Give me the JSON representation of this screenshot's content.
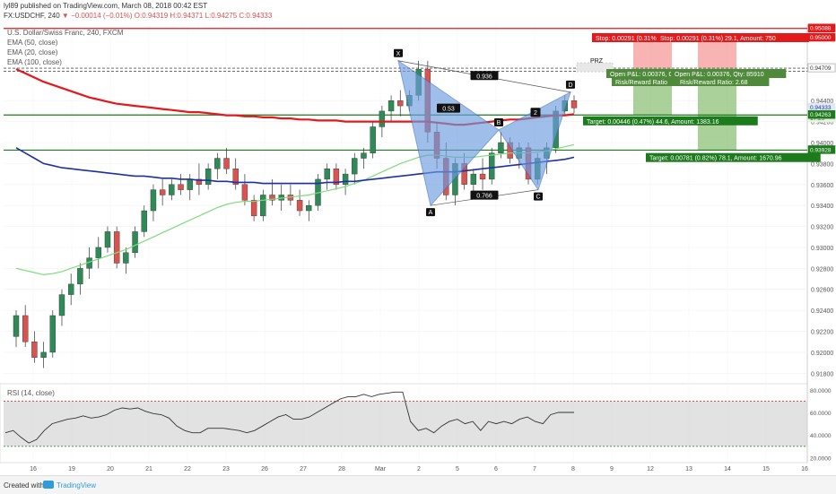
{
  "header": {
    "publisher": "lyl89 published on TradingView.com, March 08, 2018 00:42 EST",
    "symbol": "FX:USDCHF, 240",
    "change": "▼ −0.00014 (−0.01%)",
    "o": "O:0.94319",
    "h": "H:0.94371",
    "l": "L:0.94275",
    "c": "C:0.94333",
    "last": "0.94333"
  },
  "legend": {
    "name": "U.S. Dollar/Swiss Franc, 240, FXCM",
    "ema50": "EMA (50, close)",
    "ema20": "EMA (20, close)",
    "ema100": "EMA (100, close)"
  },
  "footer": {
    "created": "Created with",
    "brand": "TradingView"
  },
  "colors": {
    "up": "#2e8b57",
    "down": "#d9534f",
    "ema100": "#e31a1c",
    "ema50": "#1f2fa8",
    "ema20": "#7ddc7d",
    "level": "#1d7a1d",
    "pattern": "#6c9de0",
    "stop": "#f7a6a6",
    "target": "#9cc98a"
  },
  "chart_data": {
    "type": "candlestick",
    "y_axis_ticks": [
      "0.94400",
      "0.94200",
      "0.94000",
      "0.93800",
      "0.93600",
      "0.93400",
      "0.93200",
      "0.93000",
      "0.92800",
      "0.92600",
      "0.92400",
      "0.92200",
      "0.92000",
      "0.91800"
    ],
    "ylim": [
      0.917,
      0.9512
    ],
    "x_axis_ticks": [
      "16",
      "19",
      "20",
      "21",
      "22",
      "23",
      "26",
      "27",
      "28",
      "Mar",
      "2",
      "5",
      "6",
      "7",
      "8",
      "9",
      "12",
      "13",
      "14",
      "15",
      "16"
    ],
    "price_labels": [
      {
        "text": "0.95088",
        "value": 0.95088,
        "bg": "#e31a1c",
        "fg": "#ffffff"
      },
      {
        "text": "0.95000",
        "value": 0.95,
        "bg": "#e31a1c",
        "fg": "#ffffff"
      },
      {
        "text": "0.94709",
        "value": 0.94709,
        "bg": "#ffffff",
        "fg": "#333333"
      },
      {
        "text": "0.94709",
        "value": 0.94709,
        "bg": "#ffffff",
        "fg": "#333333"
      },
      {
        "text": "0.94333",
        "value": 0.94333,
        "bg": "#dfe9f7",
        "fg": "#1f2fa8"
      },
      {
        "text": "17:29",
        "value": 0.9423,
        "bg": "#e8f2e0",
        "fg": "#1d7a1d"
      },
      {
        "text": "0.94263",
        "value": 0.94263,
        "bg": "#1d7a1d",
        "fg": "#ffffff"
      },
      {
        "text": "0.93928",
        "value": 0.93928,
        "bg": "#1d7a1d",
        "fg": "#ffffff"
      }
    ],
    "candles": [
      [
        0.9215,
        0.924,
        0.9205,
        0.9235
      ],
      [
        0.9235,
        0.9245,
        0.9205,
        0.921
      ],
      [
        0.921,
        0.922,
        0.919,
        0.9195
      ],
      [
        0.9195,
        0.921,
        0.9185,
        0.92
      ],
      [
        0.92,
        0.924,
        0.9195,
        0.9235
      ],
      [
        0.9235,
        0.926,
        0.9225,
        0.9255
      ],
      [
        0.9255,
        0.9275,
        0.9245,
        0.9265
      ],
      [
        0.9265,
        0.9285,
        0.9255,
        0.928
      ],
      [
        0.928,
        0.93,
        0.927,
        0.929
      ],
      [
        0.929,
        0.931,
        0.928,
        0.93
      ],
      [
        0.93,
        0.932,
        0.9295,
        0.9315
      ],
      [
        0.9315,
        0.932,
        0.928,
        0.9285
      ],
      [
        0.9285,
        0.93,
        0.9275,
        0.9295
      ],
      [
        0.9295,
        0.932,
        0.929,
        0.9315
      ],
      [
        0.9315,
        0.934,
        0.931,
        0.9335
      ],
      [
        0.9335,
        0.936,
        0.9325,
        0.9355
      ],
      [
        0.9355,
        0.9365,
        0.934,
        0.935
      ],
      [
        0.935,
        0.9365,
        0.9345,
        0.936
      ],
      [
        0.936,
        0.937,
        0.935,
        0.9355
      ],
      [
        0.9355,
        0.937,
        0.9345,
        0.9365
      ],
      [
        0.9365,
        0.938,
        0.935,
        0.936
      ],
      [
        0.936,
        0.938,
        0.9355,
        0.9375
      ],
      [
        0.9375,
        0.939,
        0.9365,
        0.9385
      ],
      [
        0.9385,
        0.9395,
        0.937,
        0.9375
      ],
      [
        0.9375,
        0.9385,
        0.9355,
        0.936
      ],
      [
        0.936,
        0.937,
        0.934,
        0.9345
      ],
      [
        0.9345,
        0.935,
        0.9325,
        0.933
      ],
      [
        0.933,
        0.9355,
        0.9325,
        0.935
      ],
      [
        0.935,
        0.9365,
        0.934,
        0.9345
      ],
      [
        0.9345,
        0.936,
        0.9335,
        0.935
      ],
      [
        0.935,
        0.936,
        0.934,
        0.9345
      ],
      [
        0.9345,
        0.9355,
        0.933,
        0.9335
      ],
      [
        0.9335,
        0.9345,
        0.9325,
        0.934
      ],
      [
        0.934,
        0.937,
        0.9335,
        0.9365
      ],
      [
        0.9365,
        0.938,
        0.9355,
        0.9375
      ],
      [
        0.9375,
        0.938,
        0.9355,
        0.936
      ],
      [
        0.936,
        0.9375,
        0.935,
        0.937
      ],
      [
        0.937,
        0.939,
        0.936,
        0.9385
      ],
      [
        0.9385,
        0.9395,
        0.9375,
        0.939
      ],
      [
        0.939,
        0.942,
        0.9385,
        0.9415
      ],
      [
        0.9415,
        0.9435,
        0.9405,
        0.943
      ],
      [
        0.943,
        0.9445,
        0.942,
        0.944
      ],
      [
        0.944,
        0.945,
        0.9425,
        0.9435
      ],
      [
        0.9435,
        0.945,
        0.943,
        0.9445
      ],
      [
        0.9445,
        0.9478,
        0.944,
        0.947
      ],
      [
        0.947,
        0.9478,
        0.94,
        0.941
      ],
      [
        0.941,
        0.942,
        0.9375,
        0.9385
      ],
      [
        0.9385,
        0.94,
        0.9345,
        0.935
      ],
      [
        0.935,
        0.9385,
        0.934,
        0.938
      ],
      [
        0.938,
        0.939,
        0.9355,
        0.936
      ],
      [
        0.936,
        0.9375,
        0.935,
        0.937
      ],
      [
        0.937,
        0.9385,
        0.9355,
        0.9365
      ],
      [
        0.9365,
        0.9395,
        0.936,
        0.939
      ],
      [
        0.939,
        0.941,
        0.9385,
        0.94
      ],
      [
        0.94,
        0.9405,
        0.938,
        0.9385
      ],
      [
        0.9385,
        0.94,
        0.9375,
        0.9395
      ],
      [
        0.9395,
        0.94,
        0.936,
        0.9365
      ],
      [
        0.9365,
        0.939,
        0.936,
        0.9385
      ],
      [
        0.9385,
        0.94,
        0.937,
        0.9395
      ],
      [
        0.9395,
        0.9435,
        0.939,
        0.943
      ],
      [
        0.943,
        0.9445,
        0.9425,
        0.944
      ],
      [
        0.944,
        0.9445,
        0.9428,
        0.9433
      ]
    ],
    "ema100": [
      0.947,
      0.9466,
      0.9462,
      0.9458,
      0.9455,
      0.9452,
      0.9449,
      0.9446,
      0.9443,
      0.9441,
      0.9439,
      0.9437,
      0.9436,
      0.9435,
      0.9434,
      0.9433,
      0.9432,
      0.9431,
      0.943,
      0.9429,
      0.9429,
      0.9428,
      0.9427,
      0.9426,
      0.9426,
      0.9425,
      0.9425,
      0.9424,
      0.9424,
      0.9423,
      0.9423,
      0.9422,
      0.9422,
      0.9421,
      0.9421,
      0.9421,
      0.942,
      0.942,
      0.942,
      0.942,
      0.942,
      0.942,
      0.942,
      0.942,
      0.942,
      0.942,
      0.9419,
      0.9418,
      0.9417,
      0.9417,
      0.9418,
      0.9419,
      0.942,
      0.9421,
      0.9422,
      0.9422,
      0.9423,
      0.9424,
      0.9425,
      0.9426,
      0.9426,
      0.9427
    ],
    "ema50": [
      0.9395,
      0.939,
      0.9385,
      0.938,
      0.9378,
      0.9376,
      0.9375,
      0.9374,
      0.9373,
      0.9372,
      0.9371,
      0.937,
      0.9369,
      0.9368,
      0.9368,
      0.9367,
      0.9366,
      0.9366,
      0.9365,
      0.9365,
      0.9364,
      0.9364,
      0.9363,
      0.9363,
      0.9362,
      0.9362,
      0.9362,
      0.9361,
      0.9361,
      0.9361,
      0.9361,
      0.9361,
      0.9361,
      0.9361,
      0.9362,
      0.9362,
      0.9363,
      0.9363,
      0.9364,
      0.9365,
      0.9366,
      0.9367,
      0.9368,
      0.9369,
      0.937,
      0.9371,
      0.9372,
      0.9372,
      0.9372,
      0.9373,
      0.9374,
      0.9375,
      0.9376,
      0.9377,
      0.9378,
      0.9379,
      0.938,
      0.9381,
      0.9382,
      0.9383,
      0.9384,
      0.9386
    ],
    "ema20": [
      0.928,
      0.9278,
      0.9276,
      0.9274,
      0.9275,
      0.9277,
      0.928,
      0.9283,
      0.9286,
      0.9289,
      0.9292,
      0.9295,
      0.9298,
      0.9302,
      0.9306,
      0.931,
      0.9314,
      0.9318,
      0.9322,
      0.9326,
      0.933,
      0.9334,
      0.9338,
      0.9341,
      0.9343,
      0.9344,
      0.9344,
      0.9345,
      0.9346,
      0.9347,
      0.9348,
      0.9349,
      0.935,
      0.9352,
      0.9354,
      0.9356,
      0.9358,
      0.9361,
      0.9364,
      0.9368,
      0.9372,
      0.9376,
      0.938,
      0.9383,
      0.9386,
      0.9388,
      0.9388,
      0.9387,
      0.9386,
      0.9386,
      0.9386,
      0.9387,
      0.9388,
      0.9389,
      0.939,
      0.939,
      0.939,
      0.9391,
      0.9392,
      0.9394,
      0.9396,
      0.9398
    ],
    "levels": [
      {
        "value": 0.95088,
        "color": "#e31a1c",
        "style": "solid"
      },
      {
        "value": 0.94709,
        "color": "#555555",
        "style": "dashed"
      },
      {
        "value": 0.9468,
        "color": "#555555",
        "style": "dashed"
      },
      {
        "value": 0.94263,
        "color": "#1d7a1d",
        "style": "solid"
      },
      {
        "value": 0.93928,
        "color": "#1d7a1d",
        "style": "solid"
      }
    ],
    "harmonic": {
      "points": [
        {
          "label": "X",
          "value": 0.9478
        },
        {
          "label": "A",
          "value": 0.934
        },
        {
          "label": "B",
          "value": 0.9412
        },
        {
          "label": "C",
          "value": 0.9355
        },
        {
          "label": "D",
          "value": 0.9448
        }
      ],
      "ratios": [
        {
          "text": "0.936"
        },
        {
          "text": "0.53"
        },
        {
          "text": "0.766"
        },
        {
          "text": "2"
        }
      ],
      "prz": "PRZ"
    },
    "trades": [
      {
        "stop": "Stop: 0.00291 (0.31%) 29.1, Amount: 750",
        "stop_short": "Stop: 0.00291 (0.31%",
        "open": "Open P&L: 0.00376, C",
        "rr": "Risk/Reward Ratio",
        "target": "Target: 0.00446 (0.47%) 44.6, Amount: 1383.16",
        "target_value": 0.94263
      },
      {
        "stop": "Stop: 0.00291 (0.31%) 29.1, Amount: 750",
        "open": "Open P&L: 0.00376, Qty: 85910",
        "rr": "Risk/Reward Ratio: 2.68",
        "target": "Target: 0.00781 (0.82%) 78.1, Amount: 1670.96",
        "target_value": 0.93928
      }
    ],
    "rsi": {
      "label": "RSI (14, close)",
      "ticks": [
        "80.0000",
        "60.0000",
        "40.0000",
        "20.0000"
      ],
      "ylim": [
        18,
        83
      ],
      "upper": 70,
      "lower": 30,
      "values": [
        42,
        44,
        38,
        33,
        36,
        44,
        50,
        52,
        54,
        55,
        57,
        55,
        56,
        58,
        62,
        64,
        63,
        64,
        61,
        59,
        58,
        55,
        48,
        44,
        42,
        42,
        46,
        46,
        46,
        45,
        44,
        42,
        44,
        48,
        52,
        56,
        58,
        54,
        54,
        56,
        60,
        64,
        68,
        72,
        74,
        74,
        76,
        74,
        76,
        77,
        78,
        78,
        52,
        44,
        46,
        42,
        48,
        52,
        54,
        50,
        52,
        44,
        52,
        50,
        52,
        50,
        54,
        56,
        52,
        50,
        58,
        60,
        60,
        60
      ]
    }
  }
}
